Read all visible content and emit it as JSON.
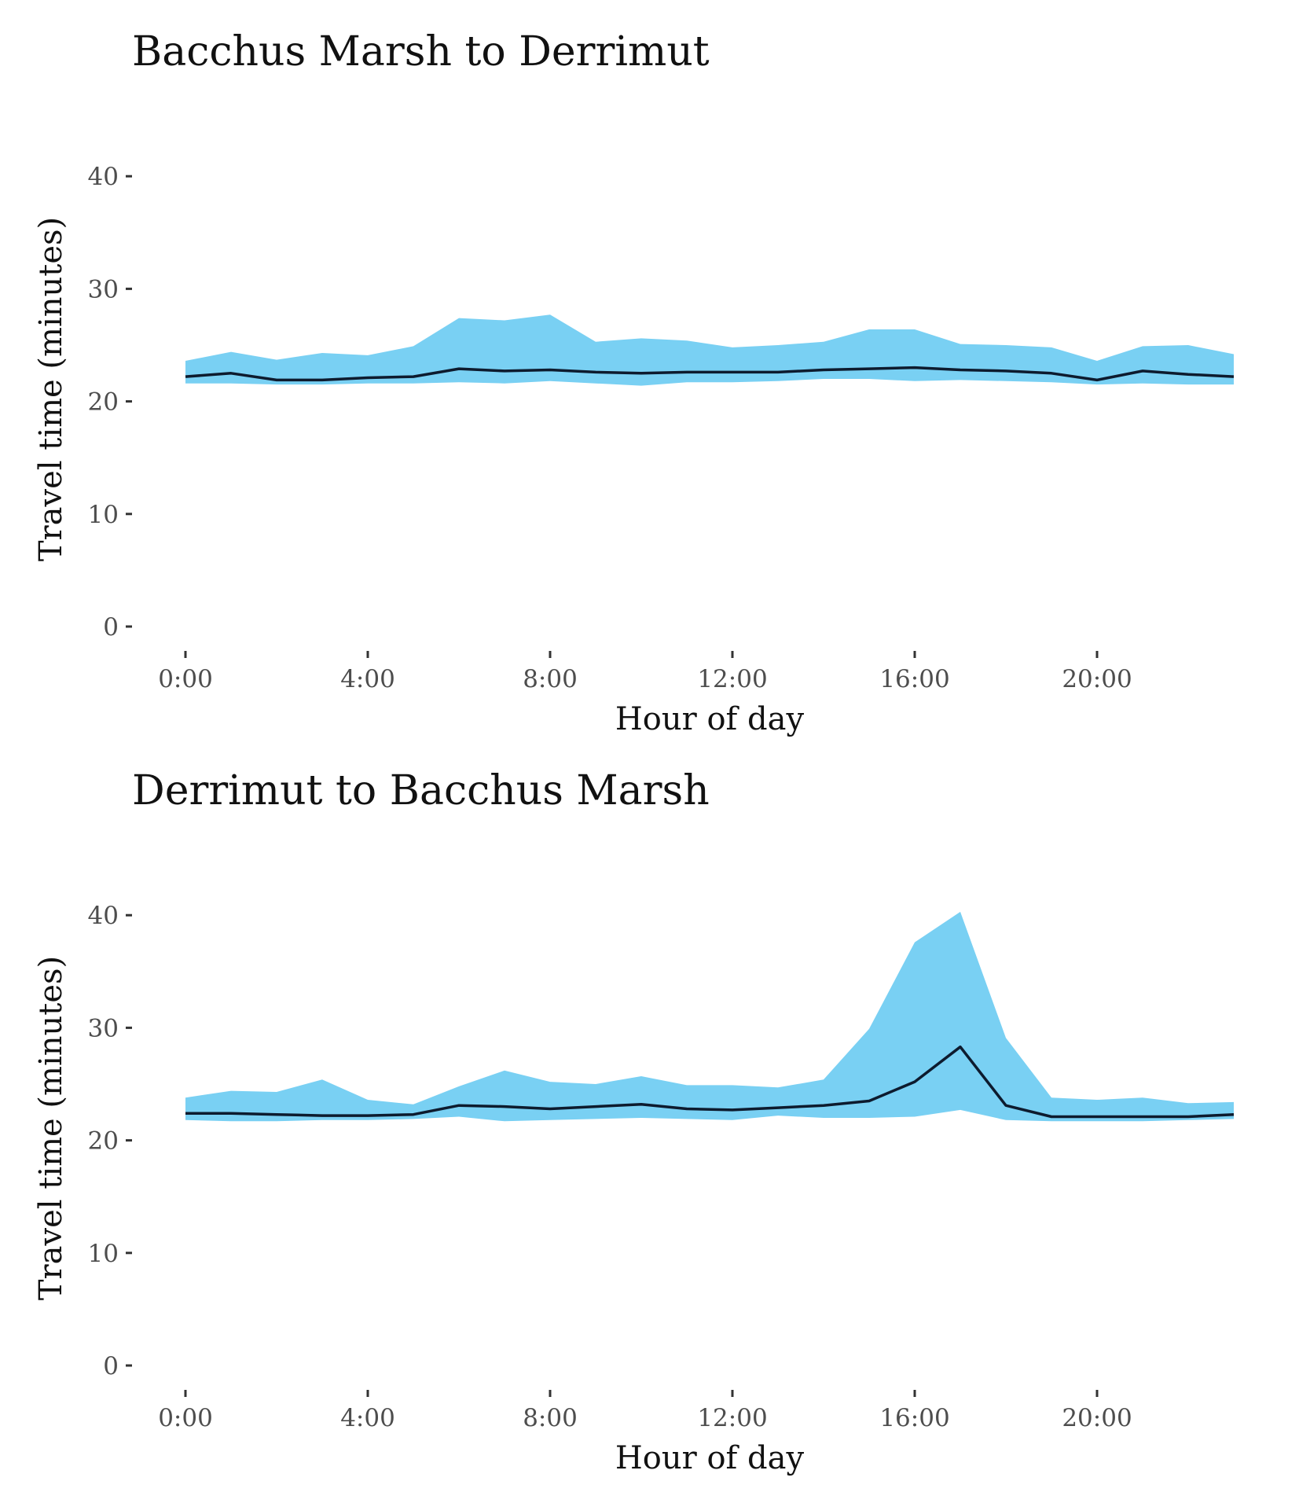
{
  "colors": {
    "band": "#79D0F3",
    "line": "#0D1B2E",
    "tick_label": "#4d4d4d",
    "title": "#111111"
  },
  "chart_data": [
    {
      "type": "area",
      "title": "Bacchus Marsh to Derrimut",
      "xlabel": "Hour of day",
      "ylabel": "Travel time (minutes)",
      "ylim": [
        0,
        43
      ],
      "xlim": [
        0,
        23
      ],
      "x_tick_values": [
        0,
        4,
        8,
        12,
        16,
        20
      ],
      "x_tick_labels": [
        "0:00",
        "4:00",
        "8:00",
        "12:00",
        "16:00",
        "20:00"
      ],
      "y_tick_values": [
        0,
        10,
        20,
        30,
        40
      ],
      "y_tick_labels": [
        "0",
        "10",
        "20",
        "30",
        "40"
      ],
      "grid": false,
      "legend": "none",
      "x": [
        0,
        1,
        2,
        3,
        4,
        5,
        6,
        7,
        8,
        9,
        10,
        11,
        12,
        13,
        14,
        15,
        16,
        17,
        18,
        19,
        20,
        21,
        22,
        23
      ],
      "series": [
        {
          "role": "band-upper",
          "values": [
            23.6,
            24.4,
            23.7,
            24.3,
            24.1,
            24.9,
            27.4,
            27.2,
            27.7,
            25.3,
            25.6,
            25.4,
            24.8,
            25.0,
            25.3,
            26.4,
            26.4,
            25.1,
            25.0,
            24.8,
            23.6,
            24.9,
            25.0,
            24.2
          ]
        },
        {
          "role": "band-lower",
          "values": [
            21.6,
            21.6,
            21.5,
            21.5,
            21.6,
            21.6,
            21.7,
            21.6,
            21.8,
            21.6,
            21.4,
            21.7,
            21.7,
            21.8,
            22.0,
            22.0,
            21.8,
            21.9,
            21.8,
            21.7,
            21.5,
            21.6,
            21.5,
            21.5
          ]
        },
        {
          "role": "line",
          "values": [
            22.2,
            22.5,
            21.9,
            21.9,
            22.1,
            22.2,
            22.9,
            22.7,
            22.8,
            22.6,
            22.5,
            22.6,
            22.6,
            22.6,
            22.8,
            22.9,
            23.0,
            22.8,
            22.7,
            22.5,
            21.9,
            22.7,
            22.4,
            22.2
          ]
        }
      ]
    },
    {
      "type": "area",
      "title": "Derrimut to Bacchus Marsh",
      "xlabel": "Hour of day",
      "ylabel": "Travel time (minutes)",
      "ylim": [
        0,
        43
      ],
      "xlim": [
        0,
        23
      ],
      "x_tick_values": [
        0,
        4,
        8,
        12,
        16,
        20
      ],
      "x_tick_labels": [
        "0:00",
        "4:00",
        "8:00",
        "12:00",
        "16:00",
        "20:00"
      ],
      "y_tick_values": [
        0,
        10,
        20,
        30,
        40
      ],
      "y_tick_labels": [
        "0",
        "10",
        "20",
        "30",
        "40"
      ],
      "grid": false,
      "legend": "none",
      "x": [
        0,
        1,
        2,
        3,
        4,
        5,
        6,
        7,
        8,
        9,
        10,
        11,
        12,
        13,
        14,
        15,
        16,
        17,
        18,
        19,
        20,
        21,
        22,
        23
      ],
      "series": [
        {
          "role": "band-upper",
          "values": [
            23.8,
            24.4,
            24.3,
            25.4,
            23.6,
            23.2,
            24.8,
            26.2,
            25.2,
            25.0,
            25.7,
            24.9,
            24.9,
            24.7,
            25.4,
            29.9,
            37.6,
            40.3,
            29.1,
            23.8,
            23.6,
            23.8,
            23.3,
            23.4
          ]
        },
        {
          "role": "band-lower",
          "values": [
            21.8,
            21.7,
            21.7,
            21.8,
            21.8,
            21.9,
            22.1,
            21.7,
            21.8,
            21.9,
            22.0,
            21.9,
            21.8,
            22.2,
            22.0,
            22.0,
            22.1,
            22.7,
            21.8,
            21.7,
            21.7,
            21.7,
            21.8,
            21.9
          ]
        },
        {
          "role": "line",
          "values": [
            22.4,
            22.4,
            22.3,
            22.2,
            22.2,
            22.3,
            23.1,
            23.0,
            22.8,
            23.0,
            23.2,
            22.8,
            22.7,
            22.9,
            23.1,
            23.5,
            25.2,
            28.3,
            23.1,
            22.1,
            22.1,
            22.1,
            22.1,
            22.3
          ]
        }
      ]
    }
  ]
}
